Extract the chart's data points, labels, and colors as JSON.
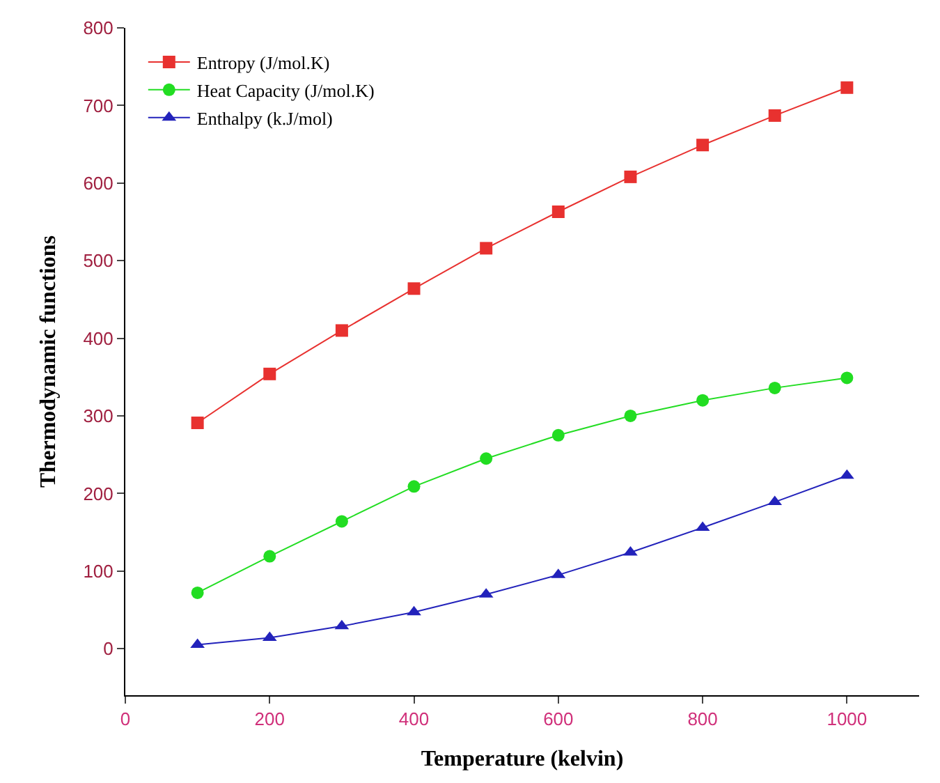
{
  "chart_data": {
    "type": "line",
    "xlabel": "Temperature (kelvin)",
    "ylabel": "Thermodynamic functions",
    "x": [
      100,
      200,
      300,
      400,
      500,
      600,
      700,
      800,
      900,
      1000
    ],
    "series": [
      {
        "name": "Entropy (J/mol.K)",
        "color": "#e8312f",
        "marker": "square",
        "values": [
          291,
          354,
          410,
          464,
          516,
          563,
          608,
          649,
          687,
          723
        ]
      },
      {
        "name": "Heat Capacity (J/mol.K)",
        "color": "#22dd22",
        "marker": "circle",
        "values": [
          72,
          119,
          164,
          209,
          245,
          275,
          300,
          320,
          336,
          349
        ]
      },
      {
        "name": "Enthalpy (k.J/mol)",
        "color": "#2222bb",
        "marker": "triangle",
        "values": [
          5,
          14,
          29,
          47,
          70,
          95,
          124,
          156,
          189,
          223
        ]
      }
    ],
    "xlim": [
      0,
      1100
    ],
    "xticks": [
      0,
      200,
      400,
      600,
      800,
      1000
    ],
    "ylim": [
      -60,
      800
    ],
    "yticks": [
      0,
      100,
      200,
      300,
      400,
      500,
      600,
      700,
      800
    ],
    "legend": "top left",
    "line_style": "solid"
  }
}
